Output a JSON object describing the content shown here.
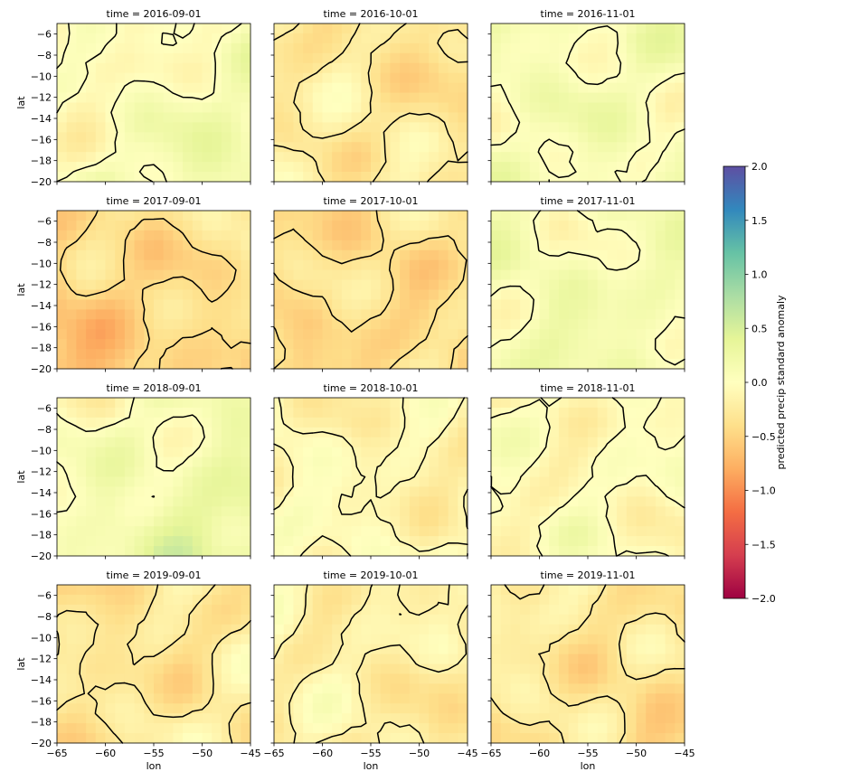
{
  "chart_data": {
    "type": "heatmap",
    "description_kind": "faceted grid of gridded anomaly maps with contour lines",
    "x_label": "lon",
    "y_label": "lat",
    "xlim": [
      -65,
      -45
    ],
    "ylim": [
      -20,
      -5
    ],
    "x_ticks": [
      -65,
      -60,
      -55,
      -50,
      -45
    ],
    "x_tick_labels": [
      "−65",
      "−60",
      "−55",
      "−50",
      "−45"
    ],
    "y_ticks": [
      -6,
      -8,
      -10,
      -12,
      -14,
      -16,
      -18,
      -20
    ],
    "y_tick_labels": [
      "−6",
      "−8",
      "−10",
      "−12",
      "−14",
      "−16",
      "−18",
      "−20"
    ],
    "panels": [
      {
        "title": "time = 2016-09-01",
        "mean": 0.05,
        "trend_x": 0.12,
        "trend_y": 0.1
      },
      {
        "title": "time = 2016-10-01",
        "mean": -0.28,
        "trend_x": -0.05,
        "trend_y": 0.06
      },
      {
        "title": "time = 2016-11-01",
        "mean": 0.1,
        "trend_x": 0.0,
        "trend_y": 0.0
      },
      {
        "title": "time = 2017-09-01",
        "mean": -0.45,
        "trend_x": 0.12,
        "trend_y": -0.1
      },
      {
        "title": "time = 2017-10-01",
        "mean": -0.4,
        "trend_x": 0.02,
        "trend_y": -0.02
      },
      {
        "title": "time = 2017-11-01",
        "mean": 0.12,
        "trend_x": 0.0,
        "trend_y": 0.05
      },
      {
        "title": "time = 2018-09-01",
        "mean": 0.15,
        "trend_x": 0.12,
        "trend_y": 0.12
      },
      {
        "title": "time = 2018-10-01",
        "mean": -0.12,
        "trend_x": -0.05,
        "trend_y": 0.03
      },
      {
        "title": "time = 2018-11-01",
        "mean": -0.05,
        "trend_x": 0.0,
        "trend_y": 0.0
      },
      {
        "title": "time = 2019-09-01",
        "mean": -0.3,
        "trend_x": 0.05,
        "trend_y": 0.02
      },
      {
        "title": "time = 2019-10-01",
        "mean": -0.2,
        "trend_x": -0.05,
        "trend_y": -0.03
      },
      {
        "title": "time = 2019-11-01",
        "mean": -0.3,
        "trend_x": -0.08,
        "trend_y": -0.05
      }
    ],
    "colorbar": {
      "label": "predicted precip standard anomaly",
      "vmin": -2.0,
      "vmax": 2.0,
      "colormap": "Spectral",
      "ticks": [
        2.0,
        1.5,
        1.0,
        0.5,
        0.0,
        -0.5,
        -1.0,
        -1.5,
        -2.0
      ],
      "tick_labels": [
        "2.0",
        "1.5",
        "1.0",
        "0.5",
        "0.0",
        "−0.5",
        "−1.0",
        "−1.5",
        "−2.0"
      ],
      "colors": [
        "#9e0142",
        "#d53e4f",
        "#f46d43",
        "#fdae61",
        "#fee08b",
        "#ffffbf",
        "#e6f598",
        "#abdda4",
        "#66c2a5",
        "#3288bd",
        "#5e4fa2"
      ]
    },
    "contour_color": "#000000"
  }
}
